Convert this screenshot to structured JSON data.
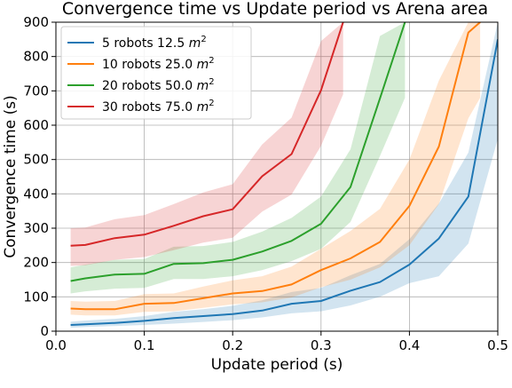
{
  "chart_data": {
    "type": "line",
    "title": "Convergence time vs Update period vs Arena area",
    "xlabel": "Update period (s)",
    "ylabel": "Convergence time (s)",
    "xlim": [
      0.0,
      0.5
    ],
    "ylim": [
      0,
      900
    ],
    "xticks": [
      0.0,
      0.1,
      0.2,
      0.3,
      0.4,
      0.5
    ],
    "xtick_labels": [
      "0.0",
      "0.1",
      "0.2",
      "0.3",
      "0.4",
      "0.5"
    ],
    "yticks": [
      0,
      100,
      200,
      300,
      400,
      500,
      600,
      700,
      800,
      900
    ],
    "ytick_labels": [
      "0",
      "100",
      "200",
      "300",
      "400",
      "500",
      "600",
      "700",
      "800",
      "900"
    ],
    "grid": true,
    "legend_position": "top-left",
    "series": [
      {
        "name": "5 robots 12.5 m²",
        "label_main": "5 robots 12.5 ",
        "label_unit": "m",
        "label_sup": "2",
        "color": "#1f77b4",
        "x": [
          0.0167,
          0.0333,
          0.0667,
          0.1,
          0.1333,
          0.1667,
          0.2,
          0.2333,
          0.2667,
          0.3,
          0.3333,
          0.3667,
          0.4,
          0.4333,
          0.4667,
          0.5
        ],
        "y": [
          18,
          20,
          24,
          30,
          38,
          44,
          50,
          60,
          80,
          88,
          118,
          143,
          194,
          270,
          392,
          850
        ],
        "y_low": [
          10,
          12,
          15,
          18,
          22,
          27,
          32,
          40,
          52,
          58,
          75,
          100,
          140,
          160,
          255,
          560
        ],
        "y_high": [
          28,
          31,
          36,
          44,
          56,
          64,
          74,
          90,
          114,
          126,
          163,
          196,
          268,
          372,
          520,
          900
        ]
      },
      {
        "name": "10 robots 25.0 m²",
        "label_main": "10 robots 25.0 ",
        "label_unit": "m",
        "label_sup": "2",
        "color": "#ff7f0e",
        "x": [
          0.0167,
          0.0333,
          0.0667,
          0.1,
          0.1333,
          0.1667,
          0.2,
          0.2333,
          0.2667,
          0.3,
          0.3333,
          0.3667,
          0.4,
          0.4333,
          0.4667,
          0.48
        ],
        "y": [
          66,
          64,
          64,
          80,
          82,
          96,
          110,
          117,
          136,
          178,
          212,
          260,
          365,
          538,
          870,
          900
        ],
        "y_low": [
          48,
          46,
          46,
          56,
          58,
          68,
          78,
          84,
          98,
          128,
          150,
          186,
          250,
          370,
          620,
          680
        ],
        "y_high": [
          88,
          86,
          88,
          108,
          110,
          130,
          148,
          160,
          188,
          240,
          292,
          356,
          500,
          730,
          900,
          900
        ]
      },
      {
        "name": "20 robots 50.0 m²",
        "label_main": "20 robots 50.0 ",
        "label_unit": "m",
        "label_sup": "2",
        "color": "#2ca02c",
        "x": [
          0.0167,
          0.0333,
          0.0667,
          0.1,
          0.1333,
          0.1667,
          0.2,
          0.2333,
          0.2667,
          0.3,
          0.3333,
          0.3667,
          0.395
        ],
        "y": [
          146,
          154,
          165,
          167,
          196,
          198,
          208,
          232,
          263,
          313,
          420,
          678,
          900
        ],
        "y_low": [
          110,
          116,
          124,
          126,
          152,
          152,
          160,
          178,
          204,
          240,
          318,
          510,
          680
        ],
        "y_high": [
          186,
          194,
          208,
          210,
          246,
          248,
          260,
          290,
          330,
          392,
          530,
          860,
          900
        ]
      },
      {
        "name": "30 robots 75.0 m²",
        "label_main": "30 robots 75.0 ",
        "label_unit": "m",
        "label_sup": "2",
        "color": "#d62728",
        "x": [
          0.0167,
          0.0333,
          0.0667,
          0.1,
          0.1333,
          0.1667,
          0.2,
          0.2333,
          0.2667,
          0.3,
          0.325
        ],
        "y": [
          249,
          251,
          271,
          281,
          307,
          335,
          355,
          451,
          516,
          702,
          900
        ],
        "y_low": [
          190,
          192,
          208,
          216,
          236,
          258,
          272,
          348,
          398,
          540,
          690
        ],
        "y_high": [
          300,
          302,
          326,
          338,
          370,
          404,
          428,
          544,
          622,
          845,
          900
        ]
      }
    ]
  }
}
